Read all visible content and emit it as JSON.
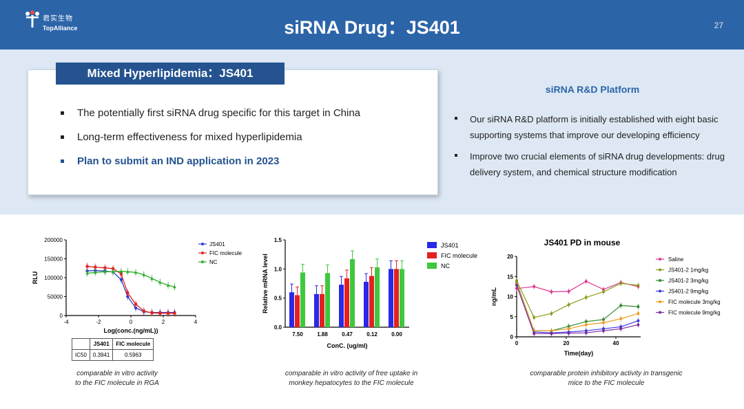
{
  "header": {
    "logo_cn": "君实生物",
    "logo_en": "TopAlliance",
    "title": "siRNA Drug：JS401",
    "page_number": "27",
    "colors": {
      "header_bg": "#2c64a8",
      "band_bg": "#dde8f4",
      "tab_bg": "#24538f"
    }
  },
  "left_panel": {
    "tab_title": "Mixed Hyperlipidemia：JS401",
    "bullets": [
      "The potentially first siRNA drug specific for this target in China",
      "Long-term effectiveness for mixed hyperlipidemia",
      "Plan to submit an IND application in 2023"
    ]
  },
  "right_panel": {
    "title": "siRNA R&D Platform",
    "bullets": [
      "Our siRNA R&D platform is initially established with eight basic supporting systems that improve our developing efficiency",
      "Improve two crucial elements of siRNA drug developments: drug delivery system, and chemical structure modification"
    ]
  },
  "ic50_table": {
    "headers": [
      "",
      "JS401",
      "FIC molecule"
    ],
    "row": [
      "IC50",
      "0.3941",
      "0.5963"
    ]
  },
  "captions": {
    "c1_line1": "comparable in vitro activity",
    "c1_line2": "to the FIC molecule in RGA",
    "c2_line1": "comparable in vitro activity of free uptake in",
    "c2_line2": "monkey hepatocytes to the FIC molecule",
    "c3_line1": "comparable protein inhibitory activity in transgenic",
    "c3_line2": "mice to the FIC molecule"
  },
  "chart_data": [
    {
      "type": "line",
      "title": "",
      "xlabel": "Log(conc.(ng/mL))",
      "ylabel": "RLU",
      "xlim": [
        -4,
        4
      ],
      "ylim": [
        0,
        200000
      ],
      "xticks": [
        "-4",
        "-2",
        "0",
        "2",
        "4"
      ],
      "yticks": [
        "0",
        "50000",
        "100000",
        "150000",
        "200000"
      ],
      "legend_position": "top-right",
      "series": [
        {
          "name": "JS401",
          "color": "#2a3fc8",
          "x": [
            -2.7,
            -2.2,
            -1.6,
            -1.1,
            -0.6,
            -0.2,
            0.3,
            0.8,
            1.3,
            1.8,
            2.3,
            2.7
          ],
          "y": [
            118000,
            119000,
            118000,
            115000,
            95000,
            50000,
            20000,
            10000,
            8000,
            8000,
            8000,
            8000
          ]
        },
        {
          "name": "FIC molecule",
          "color": "#e02020",
          "x": [
            -2.7,
            -2.2,
            -1.6,
            -1.1,
            -0.6,
            -0.2,
            0.3,
            0.8,
            1.3,
            1.8,
            2.3,
            2.7
          ],
          "y": [
            130000,
            128000,
            126000,
            124000,
            110000,
            60000,
            30000,
            12000,
            7000,
            6000,
            6000,
            6000
          ]
        },
        {
          "name": "NC",
          "color": "#2eae2e",
          "x": [
            -2.7,
            -2.2,
            -1.6,
            -1.1,
            -0.6,
            -0.2,
            0.3,
            0.8,
            1.3,
            1.8,
            2.3,
            2.7
          ],
          "y": [
            112000,
            114000,
            116000,
            116000,
            117000,
            116000,
            114000,
            108000,
            98000,
            88000,
            80000,
            76000
          ]
        }
      ]
    },
    {
      "type": "bar",
      "title": "",
      "xlabel": "ConC. (ug/ml)",
      "ylabel": "Relative  mRNA level",
      "categories": [
        "7.50",
        "1.88",
        "0.47",
        "0.12",
        "0.00"
      ],
      "ylim": [
        0,
        1.5
      ],
      "yticks": [
        "0.0",
        "0.5",
        "1.0",
        "1.5"
      ],
      "legend_position": "right",
      "series": [
        {
          "name": "JS401",
          "color": "#2929e6",
          "values": [
            0.6,
            0.57,
            0.73,
            0.78,
            1.0
          ]
        },
        {
          "name": "FIC molecule",
          "color": "#e42020",
          "values": [
            0.55,
            0.57,
            0.84,
            0.88,
            1.0
          ]
        },
        {
          "name": "NC",
          "color": "#3ec83e",
          "values": [
            0.94,
            0.93,
            1.17,
            1.03,
            1.0
          ]
        }
      ]
    },
    {
      "type": "line",
      "title": "JS401 PD in mouse",
      "xlabel": "Time(day)",
      "ylabel": "ng/mL",
      "xlim": [
        0,
        50
      ],
      "ylim": [
        0,
        20
      ],
      "xticks": [
        "0",
        "20",
        "40"
      ],
      "yticks": [
        "0",
        "5",
        "10",
        "15",
        "20"
      ],
      "legend_position": "right",
      "series": [
        {
          "name": "Saline",
          "color": "#e0358c",
          "x": [
            0,
            7,
            14,
            21,
            28,
            35,
            42,
            49
          ],
          "y": [
            12.0,
            12.5,
            11.2,
            11.3,
            13.8,
            11.8,
            13.5,
            12.5
          ]
        },
        {
          "name": "JS401-2 1mg/kg",
          "color": "#8a9a1a",
          "x": [
            0,
            7,
            14,
            21,
            28,
            35,
            42,
            49
          ],
          "y": [
            14.0,
            4.8,
            5.8,
            8.0,
            9.8,
            11.2,
            13.3,
            12.8
          ]
        },
        {
          "name": "JS401-2 3mg/kg",
          "color": "#2e8a2e",
          "x": [
            0,
            7,
            14,
            21,
            28,
            35,
            42,
            49
          ],
          "y": [
            13.5,
            1.5,
            1.5,
            2.6,
            3.8,
            4.3,
            7.8,
            7.5
          ]
        },
        {
          "name": "JS401-2 9mg/kg",
          "color": "#3a3ae0",
          "x": [
            0,
            7,
            14,
            21,
            28,
            35,
            42,
            49
          ],
          "y": [
            13.0,
            1.2,
            1.0,
            1.2,
            1.5,
            2.0,
            2.5,
            4.0
          ]
        },
        {
          "name": "FIC molecule 3mg/kg",
          "color": "#f09a20",
          "x": [
            0,
            7,
            14,
            21,
            28,
            35,
            42,
            49
          ],
          "y": [
            13.2,
            1.5,
            1.5,
            2.0,
            3.0,
            3.5,
            4.5,
            5.8
          ]
        },
        {
          "name": "FIC molecule 9mg/kg",
          "color": "#7a2aa0",
          "x": [
            0,
            7,
            14,
            21,
            28,
            35,
            42,
            49
          ],
          "y": [
            12.8,
            0.8,
            0.8,
            0.9,
            1.0,
            1.5,
            2.0,
            3.0
          ]
        }
      ]
    }
  ]
}
